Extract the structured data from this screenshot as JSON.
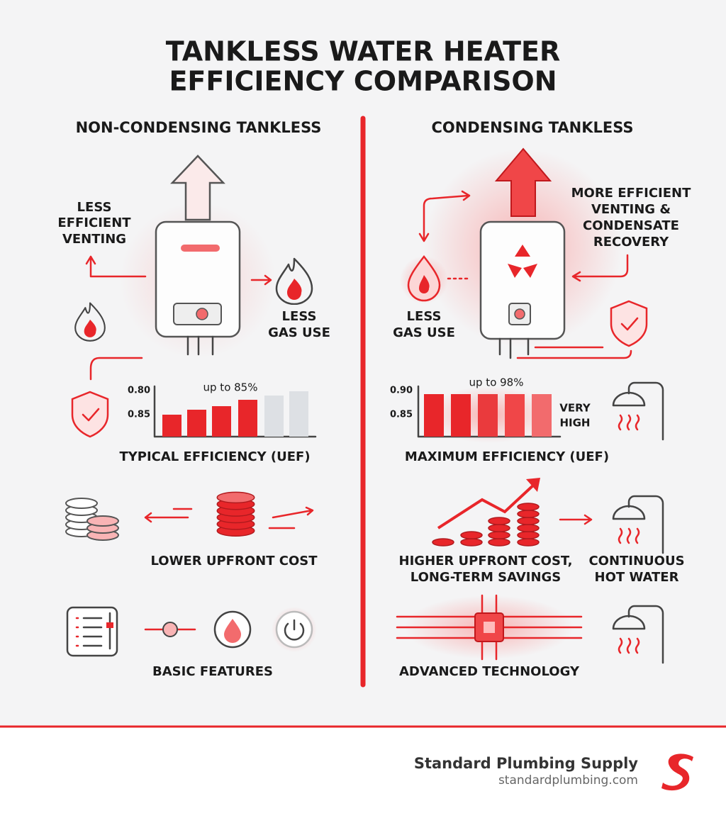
{
  "header": {
    "title_lines": [
      "TANKLESS WATER HEATER",
      "EFFICIENCY COMPARISON"
    ]
  },
  "left": {
    "heading": "NON-CONDENSING TANKLESS",
    "venting_lines": [
      "LESS",
      "EFFICIENT",
      "VENTING"
    ],
    "gas_lines": [
      "LESS",
      "GAS USE"
    ],
    "chart": {
      "ticks": [
        "0.80",
        "0.85"
      ],
      "note": "up to 85%",
      "caption": "TYPICAL EFFICIENCY (UEF)"
    },
    "cost": "LOWER UPFRONT COST",
    "features": "BASIC FEATURES"
  },
  "right": {
    "heading": "CONDENSING TANKLESS",
    "venting_lines": [
      "MORE EFFICIENT",
      "VENTING &",
      "CONDENSATE",
      "RECOVERY"
    ],
    "gas_lines": [
      "LESS",
      "GAS USE"
    ],
    "chart": {
      "ticks": [
        "0.90",
        "0.85"
      ],
      "note": "up to 98%",
      "badge_lines": [
        "VERY",
        "HIGH"
      ],
      "caption": "MAXIMUM EFFICIENCY (UEF)"
    },
    "cost_lines": [
      "HIGHER UPFRONT COST,",
      "LONG-TERM SAVINGS"
    ],
    "hot_water_lines": [
      "CONTINUOUS",
      "HOT WATER"
    ],
    "tech": "ADVANCED TECHNOLOGY"
  },
  "footer": {
    "brand": "Standard Plumbing Supply",
    "url": "standardplumbing.com"
  }
}
